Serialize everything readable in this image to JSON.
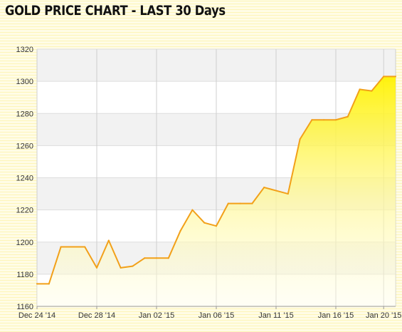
{
  "page_title": "GOLD PRICE CHART - LAST 30 Days",
  "chart_data": {
    "type": "area",
    "title": "GOLD PRICE CHART - LAST 30 Days",
    "xlabel": "",
    "ylabel": "",
    "ylim": [
      1160,
      1320
    ],
    "yticks": [
      "1160",
      "1180",
      "1200",
      "1220",
      "1240",
      "1260",
      "1280",
      "1300",
      "1320"
    ],
    "xticks": [
      {
        "label": "Dec 24 '14",
        "i": 0
      },
      {
        "label": "Dec 28 '14",
        "i": 5
      },
      {
        "label": "Jan 02 '15",
        "i": 10
      },
      {
        "label": "Jan 06 '15",
        "i": 15
      },
      {
        "label": "Jan 11 '15",
        "i": 20
      },
      {
        "label": "Jan 16 '15",
        "i": 25
      },
      {
        "label": "Jan 20 '15",
        "i": 29
      }
    ],
    "grid": true,
    "line_color": "#f2a019",
    "fill_color": "#fff200",
    "values": [
      1174,
      1174,
      1197,
      1197,
      1197,
      1184,
      1201,
      1184,
      1185,
      1190,
      1190,
      1190,
      1207,
      1220,
      1212,
      1210,
      1224,
      1224,
      1224,
      1234,
      1232,
      1230,
      1264,
      1276,
      1276,
      1276,
      1278,
      1295,
      1294,
      1303,
      1303
    ]
  }
}
